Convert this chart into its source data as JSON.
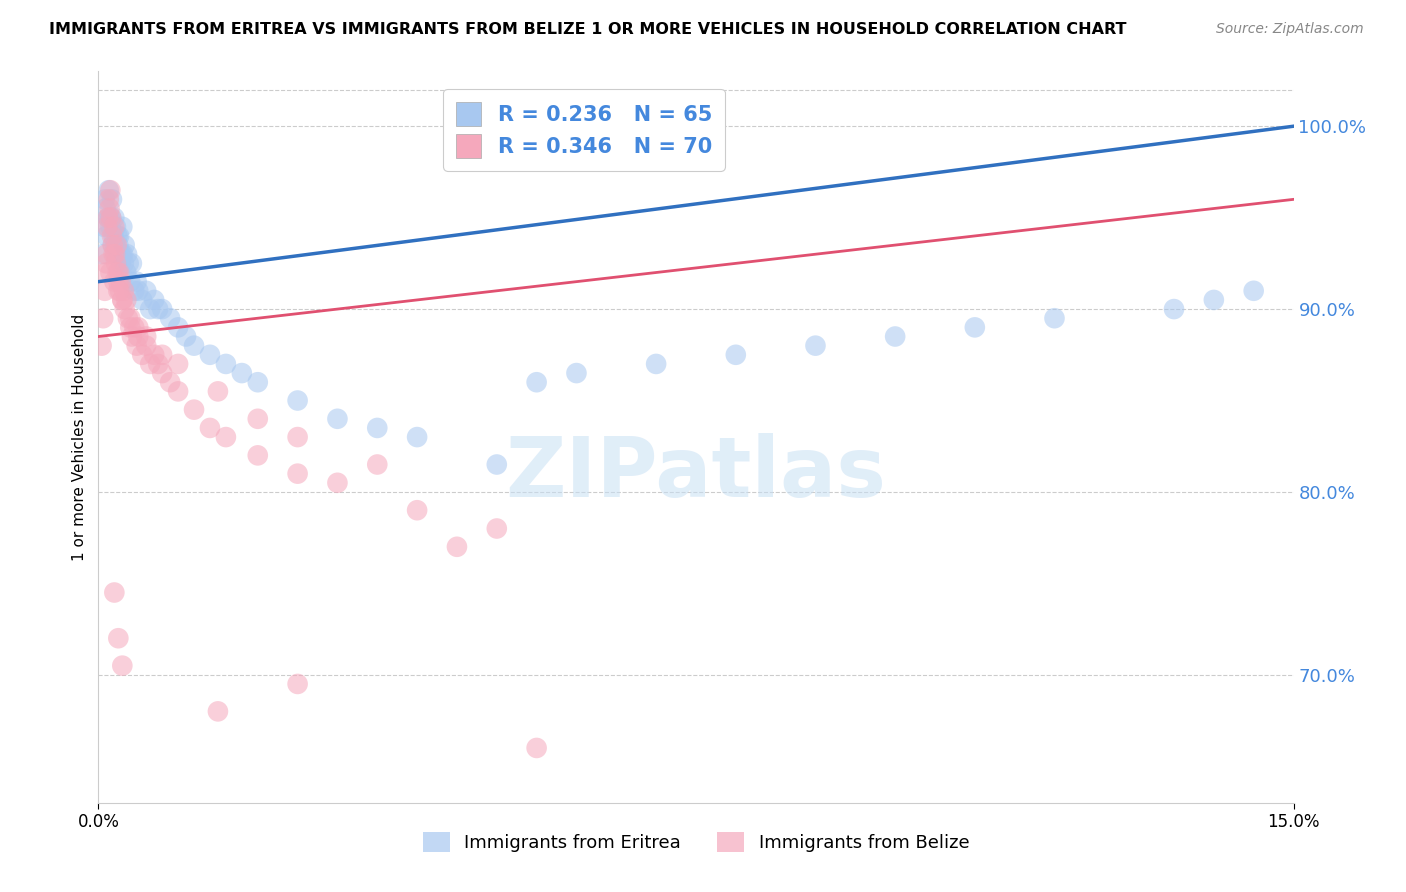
{
  "title": "IMMIGRANTS FROM ERITREA VS IMMIGRANTS FROM BELIZE 1 OR MORE VEHICLES IN HOUSEHOLD CORRELATION CHART",
  "source": "Source: ZipAtlas.com",
  "ylabel": "1 or more Vehicles in Household",
  "yticks": [
    70.0,
    80.0,
    90.0,
    100.0
  ],
  "xlim": [
    0.0,
    15.0
  ],
  "ylim": [
    63.0,
    103.0
  ],
  "legend_eritrea": "Immigrants from Eritrea",
  "legend_belize": "Immigrants from Belize",
  "R_eritrea": 0.236,
  "N_eritrea": 65,
  "R_belize": 0.346,
  "N_belize": 70,
  "color_eritrea": "#A8C8F0",
  "color_belize": "#F5A8BC",
  "line_color_eritrea": "#3070C0",
  "line_color_belize": "#E05070",
  "eritrea_x": [
    0.05,
    0.07,
    0.08,
    0.09,
    0.1,
    0.12,
    0.13,
    0.14,
    0.15,
    0.16,
    0.17,
    0.18,
    0.19,
    0.2,
    0.21,
    0.22,
    0.23,
    0.24,
    0.25,
    0.26,
    0.27,
    0.28,
    0.29,
    0.3,
    0.31,
    0.32,
    0.33,
    0.35,
    0.36,
    0.38,
    0.4,
    0.42,
    0.45,
    0.48,
    0.5,
    0.55,
    0.6,
    0.65,
    0.7,
    0.75,
    0.8,
    0.9,
    1.0,
    1.1,
    1.2,
    1.4,
    1.6,
    1.8,
    2.0,
    2.5,
    3.0,
    3.5,
    4.0,
    5.0,
    5.5,
    6.0,
    7.0,
    8.0,
    9.0,
    10.0,
    11.0,
    12.0,
    13.5,
    14.0,
    14.5
  ],
  "eritrea_y": [
    93.0,
    94.5,
    96.0,
    95.5,
    94.0,
    95.0,
    96.5,
    95.0,
    94.5,
    95.0,
    96.0,
    93.5,
    94.0,
    95.0,
    93.5,
    94.5,
    93.0,
    94.0,
    93.5,
    94.0,
    93.0,
    92.5,
    93.0,
    94.5,
    93.0,
    92.5,
    93.5,
    92.0,
    93.0,
    92.5,
    91.5,
    92.5,
    91.0,
    91.5,
    91.0,
    90.5,
    91.0,
    90.0,
    90.5,
    90.0,
    90.0,
    89.5,
    89.0,
    88.5,
    88.0,
    87.5,
    87.0,
    86.5,
    86.0,
    85.0,
    84.0,
    83.5,
    83.0,
    81.5,
    86.0,
    86.5,
    87.0,
    87.5,
    88.0,
    88.5,
    89.0,
    89.5,
    90.0,
    90.5,
    91.0
  ],
  "belize_x": [
    0.04,
    0.06,
    0.08,
    0.09,
    0.1,
    0.11,
    0.12,
    0.13,
    0.14,
    0.15,
    0.16,
    0.17,
    0.18,
    0.19,
    0.2,
    0.21,
    0.22,
    0.23,
    0.24,
    0.25,
    0.26,
    0.27,
    0.28,
    0.3,
    0.32,
    0.33,
    0.35,
    0.37,
    0.4,
    0.42,
    0.45,
    0.48,
    0.5,
    0.55,
    0.6,
    0.65,
    0.7,
    0.75,
    0.8,
    0.9,
    1.0,
    1.2,
    1.4,
    1.6,
    2.0,
    2.5,
    3.0,
    4.0,
    5.0,
    0.1,
    0.15,
    0.2,
    0.25,
    0.3,
    0.4,
    0.5,
    0.6,
    0.8,
    1.0,
    1.5,
    2.0,
    2.5,
    3.5,
    0.2,
    0.25,
    0.3,
    1.5,
    2.5,
    4.5,
    5.5
  ],
  "belize_y": [
    88.0,
    89.5,
    91.0,
    92.0,
    93.0,
    94.5,
    95.0,
    96.0,
    95.5,
    96.5,
    95.0,
    94.0,
    93.5,
    93.0,
    94.5,
    93.0,
    92.5,
    93.5,
    92.0,
    91.5,
    92.0,
    91.0,
    91.5,
    90.5,
    91.0,
    90.0,
    90.5,
    89.5,
    89.0,
    88.5,
    89.0,
    88.0,
    88.5,
    87.5,
    88.0,
    87.0,
    87.5,
    87.0,
    86.5,
    86.0,
    85.5,
    84.5,
    83.5,
    83.0,
    82.0,
    81.0,
    80.5,
    79.0,
    78.0,
    92.5,
    92.0,
    91.5,
    91.0,
    90.5,
    89.5,
    89.0,
    88.5,
    87.5,
    87.0,
    85.5,
    84.0,
    83.0,
    81.5,
    74.5,
    72.0,
    70.5,
    68.0,
    69.5,
    77.0,
    66.0
  ]
}
